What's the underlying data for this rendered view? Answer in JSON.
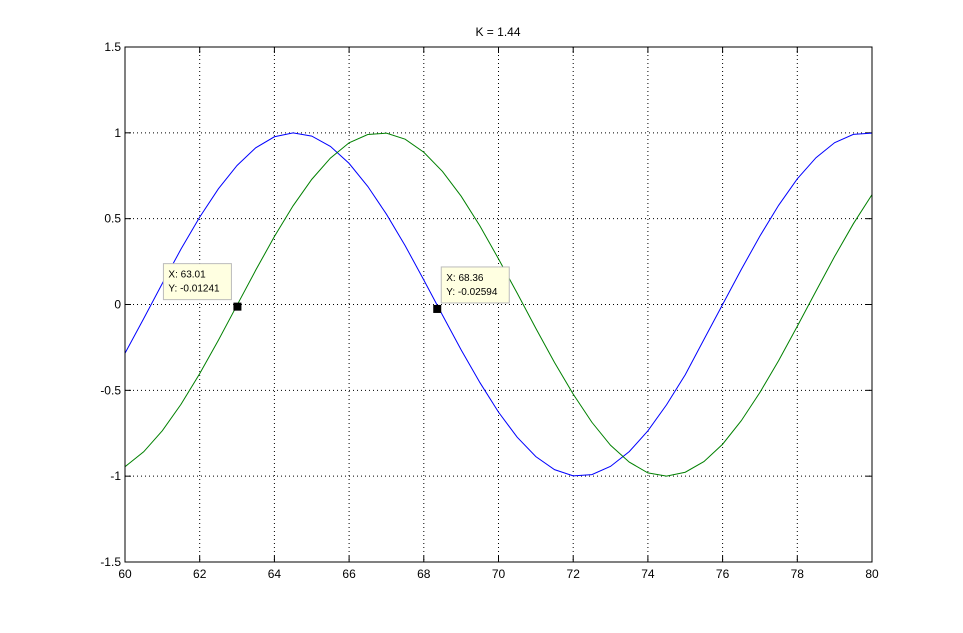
{
  "chart_data": {
    "type": "line",
    "title": "K = 1.44",
    "x": [
      60,
      60.5,
      61,
      61.5,
      62,
      62.5,
      63,
      63.5,
      64,
      64.5,
      65,
      65.5,
      66,
      66.5,
      67,
      67.5,
      68,
      68.5,
      69,
      69.5,
      70,
      70.5,
      71,
      71.5,
      72,
      72.5,
      73,
      73.5,
      74,
      74.5,
      75,
      75.5,
      76,
      76.5,
      77,
      77.5,
      78,
      78.5,
      79,
      79.5,
      80
    ],
    "series": [
      {
        "name": "blue",
        "color": "#0000ff",
        "values": [
          -0.284,
          -0.082,
          0.123,
          0.323,
          0.509,
          0.674,
          0.81,
          0.913,
          0.977,
          1.0,
          0.981,
          0.921,
          0.822,
          0.688,
          0.526,
          0.343,
          0.143,
          -0.062,
          -0.264,
          -0.454,
          -0.627,
          -0.773,
          -0.886,
          -0.962,
          -0.998,
          -0.991,
          -0.943,
          -0.857,
          -0.736,
          -0.584,
          -0.409,
          -0.204,
          0.0,
          0.204,
          0.399,
          0.578,
          0.732,
          0.855,
          0.943,
          0.991,
          0.998
        ]
      },
      {
        "name": "green",
        "color": "#008000",
        "values": [
          -0.945,
          -0.858,
          -0.735,
          -0.581,
          -0.403,
          -0.208,
          -0.004,
          0.2,
          0.396,
          0.575,
          0.729,
          0.853,
          0.942,
          0.99,
          0.998,
          0.963,
          0.887,
          0.775,
          0.631,
          0.459,
          0.266,
          0.066,
          -0.139,
          -0.338,
          -0.522,
          -0.686,
          -0.82,
          -0.918,
          -0.981,
          -1.0,
          -0.977,
          -0.915,
          -0.814,
          -0.677,
          -0.512,
          -0.327,
          -0.127,
          0.078,
          0.28,
          0.47,
          0.64
        ]
      }
    ],
    "xlim": [
      60,
      80
    ],
    "ylim": [
      -1.5,
      1.5
    ],
    "xticks": [
      60,
      62,
      64,
      66,
      68,
      70,
      72,
      74,
      76,
      78,
      80
    ],
    "yticks": [
      -1.5,
      -1,
      -0.5,
      0,
      0.5,
      1,
      1.5
    ],
    "grid": true,
    "datatips": [
      {
        "x": 63.01,
        "y": -0.01241,
        "x_label": "X: 63.01",
        "y_label": "Y: -0.01241"
      },
      {
        "x": 68.36,
        "y": -0.02594,
        "x_label": "X: 68.36",
        "y_label": "Y: -0.02594"
      }
    ]
  }
}
